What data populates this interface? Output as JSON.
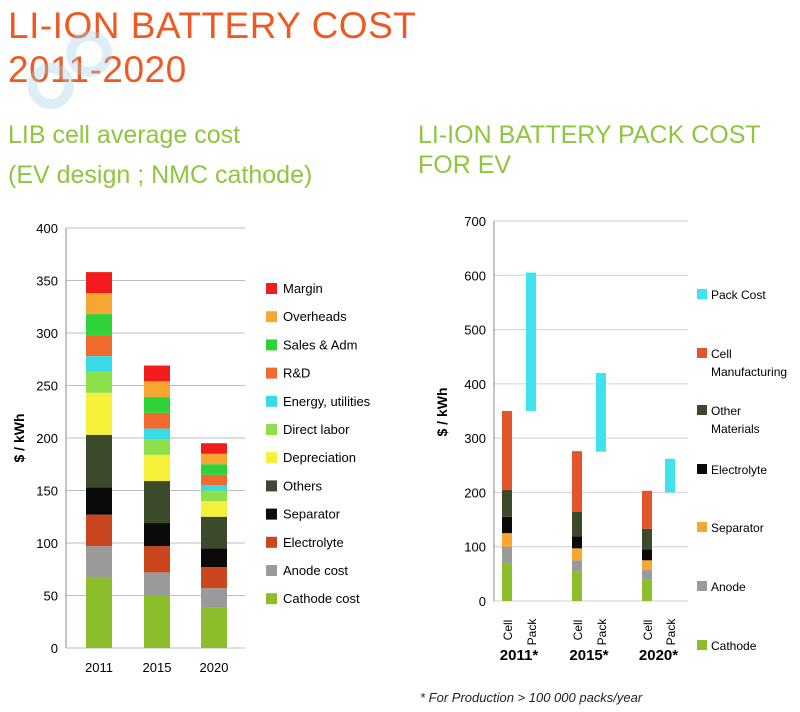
{
  "header": {
    "title_line1": "LI-ION BATTERY COST",
    "title_line2": "2011-2020",
    "left_sub1": "LIB cell average cost",
    "left_sub2": "(EV design ; NMC cathode)",
    "right_sub1": "LI-ION BATTERY PACK COST",
    "right_sub2": "FOR EV"
  },
  "footnote": "* For  Production > 100 000 packs/year",
  "chart_data": [
    {
      "type": "bar",
      "stacked": true,
      "ylabel": "$ / kWh",
      "ylim": [
        0,
        400
      ],
      "yticks": [
        0,
        50,
        100,
        150,
        200,
        250,
        300,
        350,
        400
      ],
      "categories": [
        "2011",
        "2015",
        "2020"
      ],
      "legend_position": "right",
      "series": [
        {
          "name": "Cathode cost",
          "color": "#8cbd2a",
          "values": [
            67,
            50,
            39
          ]
        },
        {
          "name": "Anode cost",
          "color": "#9a9a9a",
          "values": [
            30,
            22,
            18
          ]
        },
        {
          "name": "Electrolyte",
          "color": "#c9461f",
          "values": [
            30,
            25,
            20
          ]
        },
        {
          "name": "Separator",
          "color": "#0a0a0a",
          "values": [
            26,
            22,
            18
          ]
        },
        {
          "name": "Others",
          "color": "#3c4a2c",
          "values": [
            50,
            40,
            30
          ]
        },
        {
          "name": "Depreciation",
          "color": "#f6f03a",
          "values": [
            40,
            25,
            15
          ]
        },
        {
          "name": "Direct labor",
          "color": "#8ee04a",
          "values": [
            20,
            15,
            10
          ]
        },
        {
          "name": "Energy, utilities",
          "color": "#37dbe8",
          "values": [
            15,
            10,
            5
          ]
        },
        {
          "name": "R&D",
          "color": "#f26b2e",
          "values": [
            20,
            15,
            10
          ]
        },
        {
          "name": "Sales & Adm",
          "color": "#2ed33a",
          "values": [
            20,
            15,
            10
          ]
        },
        {
          "name": "Overheads",
          "color": "#f7a631",
          "values": [
            20,
            15,
            10
          ]
        },
        {
          "name": "Margin",
          "color": "#f21c1c",
          "values": [
            20,
            15,
            10
          ]
        }
      ]
    },
    {
      "type": "bar",
      "stacked": true,
      "ylabel": "$ / kWh",
      "ylim": [
        0,
        700
      ],
      "yticks": [
        0,
        100,
        200,
        300,
        400,
        500,
        600,
        700
      ],
      "groups": [
        "2011*",
        "2015*",
        "2020*"
      ],
      "sublabels": [
        "Cell",
        "Pack"
      ],
      "legend_position": "right",
      "cell_series": [
        {
          "name": "Cathode",
          "color": "#8cbd2a",
          "values": [
            70,
            55,
            40
          ]
        },
        {
          "name": "Anode",
          "color": "#9a9a9a",
          "values": [
            30,
            20,
            17
          ]
        },
        {
          "name": "Separator",
          "color": "#f7a631",
          "values": [
            25,
            22,
            18
          ]
        },
        {
          "name": "Electrolyte",
          "color": "#0a0a0a",
          "values": [
            30,
            22,
            20
          ]
        },
        {
          "name": "Other Materials",
          "color": "#3c4a2c",
          "values": [
            50,
            45,
            38
          ]
        },
        {
          "name": "Cell Manufacturing",
          "color": "#e2542a",
          "values": [
            145,
            112,
            70
          ]
        }
      ],
      "pack_series": {
        "name": "Pack Cost",
        "color": "#3fe3ee",
        "ranges": [
          [
            350,
            605
          ],
          [
            275,
            420
          ],
          [
            200,
            262
          ]
        ]
      }
    }
  ]
}
